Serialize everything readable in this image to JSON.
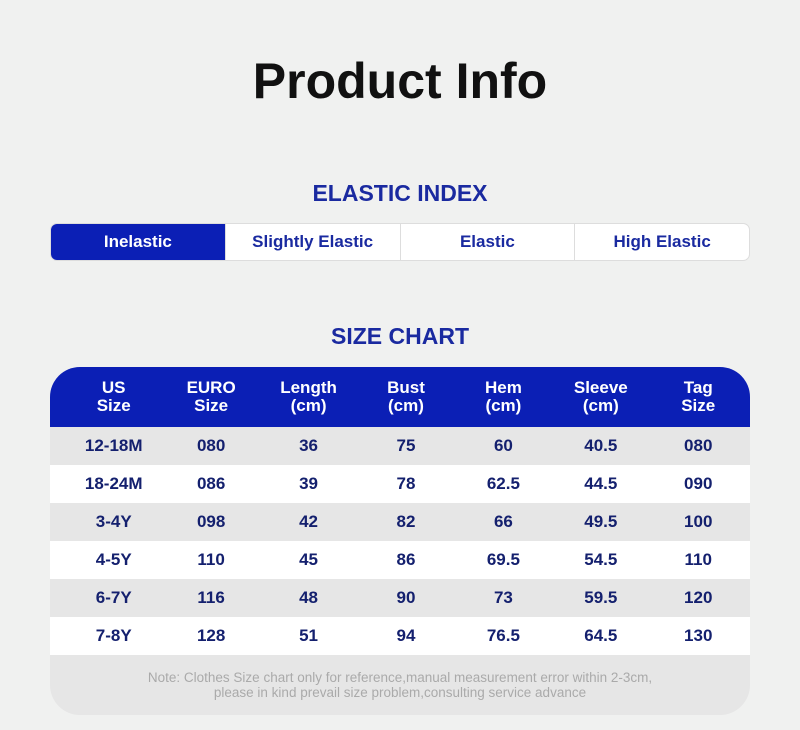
{
  "header": {
    "title": "Product Info"
  },
  "elastic_index": {
    "title": "ELASTIC INDEX",
    "options": [
      "Inelastic",
      "Slightly Elastic",
      "Elastic",
      "High Elastic"
    ],
    "selected": 0
  },
  "size_chart": {
    "title": "SIZE CHART",
    "columns": [
      [
        "US",
        "Size"
      ],
      [
        "EURO",
        "Size"
      ],
      [
        "Length",
        "(cm)"
      ],
      [
        "Bust",
        "(cm)"
      ],
      [
        "Hem",
        "(cm)"
      ],
      [
        "Sleeve",
        "(cm)"
      ],
      [
        "Tag",
        "Size"
      ]
    ],
    "rows": [
      [
        "12-18M",
        "080",
        "36",
        "75",
        "60",
        "40.5",
        "080"
      ],
      [
        "18-24M",
        "086",
        "39",
        "78",
        "62.5",
        "44.5",
        "090"
      ],
      [
        "3-4Y",
        "098",
        "42",
        "82",
        "66",
        "49.5",
        "100"
      ],
      [
        "4-5Y",
        "110",
        "45",
        "86",
        "69.5",
        "54.5",
        "110"
      ],
      [
        "6-7Y",
        "116",
        "48",
        "90",
        "73",
        "59.5",
        "120"
      ],
      [
        "7-8Y",
        "128",
        "51",
        "94",
        "76.5",
        "64.5",
        "130"
      ]
    ],
    "note": [
      "Note: Clothes Size chart only for reference,manual measurement error within 2-3cm,",
      "please in kind prevail size problem,consulting service advance"
    ]
  }
}
